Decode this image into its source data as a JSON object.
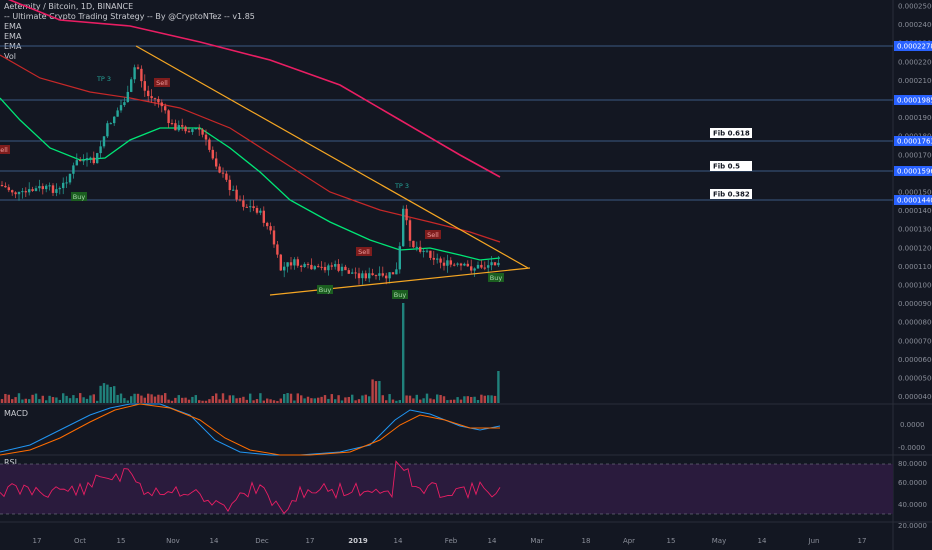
{
  "legend": {
    "title": "Aeternity / Bitcoin, 1D, BINANCE",
    "strategy": "-- Ultimate Crypto Trading Strategy -- By @CryptoNTez -- v1.85",
    "ema1": "EMA",
    "ema2": "EMA",
    "ema3": "EMA",
    "vol": "Vol"
  },
  "panes": {
    "macd_label": "MACD",
    "rsi_label": "RSI"
  },
  "price_axis": [
    "0.0002500",
    "0.0002400",
    "0.0002300",
    "0.0002200",
    "0.0002100",
    "0.0002000",
    "0.0001900",
    "0.0001800",
    "0.0001700",
    "0.0001600",
    "0.0001500",
    "0.0001400",
    "0.0001300",
    "0.0001200",
    "0.0001100",
    "0.0001000",
    "0.0000900",
    "0.0000800",
    "0.0000700",
    "0.0000600",
    "0.0000500",
    "0.0000400"
  ],
  "price_tags": [
    "0.0002278",
    "0.0001985",
    "0.0001763",
    "0.0001596",
    "0.0001440"
  ],
  "macd_axis": [
    "0.0000",
    "-0.0000"
  ],
  "rsi_axis": [
    "80.0000",
    "60.0000",
    "40.0000",
    "20.0000"
  ],
  "fib_labels": [
    "Fib 0.618",
    "Fib 0.5",
    "Fib 0.382"
  ],
  "time_axis": [
    "17",
    "Oct",
    "15",
    "Nov",
    "14",
    "Dec",
    "17",
    "2019",
    "14",
    "Feb",
    "14",
    "Mar",
    "18",
    "Apr",
    "15",
    "May",
    "14",
    "Jun",
    "17"
  ],
  "signals": {
    "buy": "Buy",
    "sell": "Sell",
    "tp": "TP 3"
  },
  "colors": {
    "background": "#131722",
    "up": "#26a69a",
    "down": "#ef5350",
    "ema_green": "#00e676",
    "ema_red": "#e53935",
    "ema_magenta": "#e91e63",
    "trendline": "#f5a623",
    "fib_line": "#4a6fa5",
    "macd_line": "#2196f3",
    "signal_line": "#ff6d00",
    "rsi_line": "#e91e63"
  }
}
